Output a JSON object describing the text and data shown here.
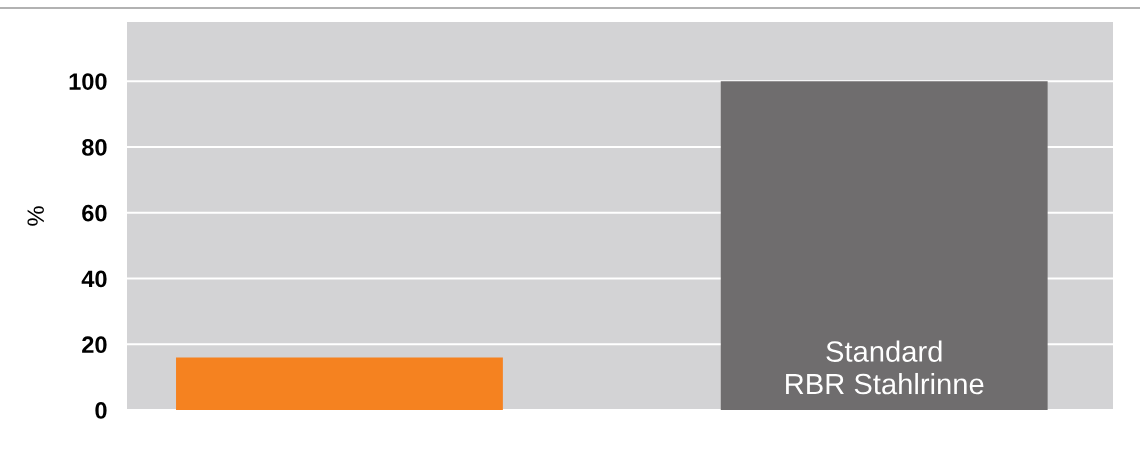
{
  "chart_data": {
    "type": "bar",
    "ylabel": "%",
    "categories": [
      null,
      "Standard\nRBR Stahlrinne"
    ],
    "values": [
      16,
      100
    ],
    "colors": [
      "#f58220",
      "#6f6d6e"
    ],
    "ylim": [
      0,
      118
    ],
    "yticks": [
      0,
      20,
      40,
      60,
      80,
      100
    ],
    "grid": "y",
    "tick_labels": "y"
  }
}
